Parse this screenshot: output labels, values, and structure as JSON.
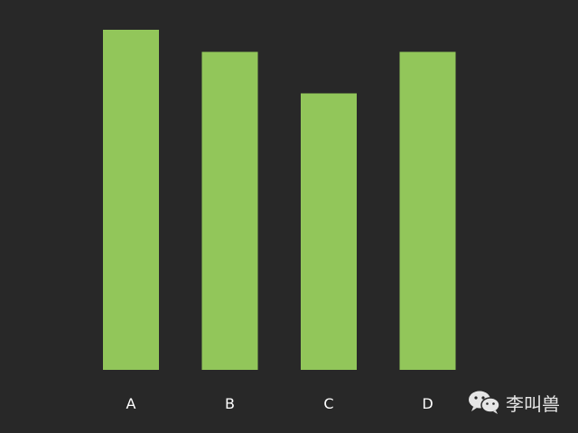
{
  "chart_data": {
    "type": "bar",
    "categories": [
      "A",
      "B",
      "C",
      "D"
    ],
    "values": [
      100,
      93.5,
      81.3,
      93.5
    ],
    "title": "",
    "xlabel": "",
    "ylabel": "",
    "ylim": [
      0,
      100
    ],
    "grid": false,
    "bar_color": "#92c65a",
    "background": "#282828",
    "label_color": "#ffffff"
  },
  "watermark": {
    "icon": "wechat-icon",
    "text": "李叫兽"
  }
}
